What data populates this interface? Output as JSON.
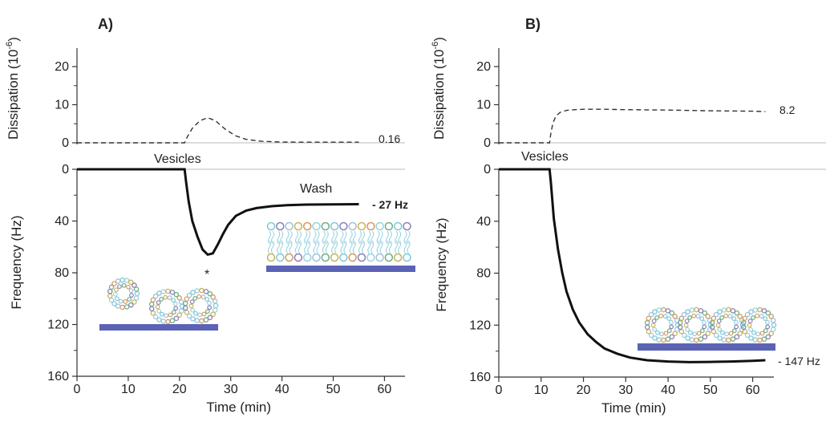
{
  "chart_data": [
    {
      "type": "line",
      "panel_label": "A)",
      "xlabel": "Time (min)",
      "x_ticks": [
        0,
        10,
        20,
        30,
        40,
        50,
        60
      ],
      "xlim": [
        0,
        64
      ],
      "dissipation": {
        "ylabel_main": "Dissipation (10",
        "ylabel_sup": "-6",
        "ylabel_end": ")",
        "ylim": [
          -1,
          25
        ],
        "ticks": [
          0,
          10,
          20
        ],
        "end_label": "0.16",
        "x": [
          0,
          21,
          21.5,
          22.5,
          24,
          25.5,
          27,
          29,
          31,
          33,
          36,
          40,
          45,
          50,
          55
        ],
        "y": [
          0,
          0,
          1.5,
          3.8,
          5.8,
          6.6,
          5.8,
          3.5,
          1.8,
          0.9,
          0.4,
          0.2,
          0.17,
          0.16,
          0.16
        ]
      },
      "frequency": {
        "ylabel": "Frequency (Hz)",
        "ylim": [
          160,
          0
        ],
        "ticks": [
          0,
          40,
          80,
          120,
          160
        ],
        "end_label": "- 27 Hz",
        "x": [
          0,
          21,
          21.3,
          21.8,
          22.5,
          23.5,
          24.5,
          25.5,
          26.5,
          27.5,
          28.5,
          29.5,
          31,
          33,
          35,
          38,
          41,
          45,
          50,
          55
        ],
        "y": [
          0,
          0,
          10,
          25,
          40,
          52,
          62,
          66,
          65,
          58,
          50,
          43,
          36,
          32,
          30,
          28.5,
          27.8,
          27.3,
          27.1,
          27
        ]
      },
      "annotations": [
        "Vesicles",
        "Wash",
        "*"
      ]
    },
    {
      "type": "line",
      "panel_label": "B)",
      "xlabel": "Time (min)",
      "x_ticks": [
        0,
        10,
        20,
        30,
        40,
        50,
        60
      ],
      "xlim": [
        0,
        65
      ],
      "dissipation": {
        "ylabel_main": "Dissipation (10",
        "ylabel_sup": "-6",
        "ylabel_end": ")",
        "ylim": [
          -1,
          25
        ],
        "ticks": [
          0,
          10,
          20
        ],
        "end_label": "8.2",
        "x": [
          0,
          12,
          12.3,
          12.8,
          13.5,
          14.5,
          16,
          18,
          20,
          25,
          30,
          40,
          50,
          60,
          63
        ],
        "y": [
          0,
          0,
          2.5,
          5.2,
          7,
          8,
          8.5,
          8.7,
          8.8,
          8.8,
          8.7,
          8.6,
          8.4,
          8.3,
          8.2
        ]
      },
      "frequency": {
        "ylabel": "Frequency (Hz)",
        "ylim": [
          160,
          0
        ],
        "ticks": [
          0,
          40,
          80,
          120,
          160
        ],
        "end_label": "- 147 Hz",
        "x": [
          0,
          12,
          12.3,
          12.6,
          13,
          14,
          15,
          16,
          17.5,
          19,
          21,
          23,
          25,
          28,
          31,
          35,
          40,
          45,
          50,
          55,
          60,
          63
        ],
        "y": [
          0,
          0,
          10,
          22,
          38,
          62,
          80,
          94,
          108,
          118,
          127,
          133,
          138,
          142,
          145,
          147,
          148,
          148.5,
          148.3,
          148,
          147.5,
          147
        ]
      },
      "annotations": [
        "Vesicles"
      ]
    }
  ]
}
